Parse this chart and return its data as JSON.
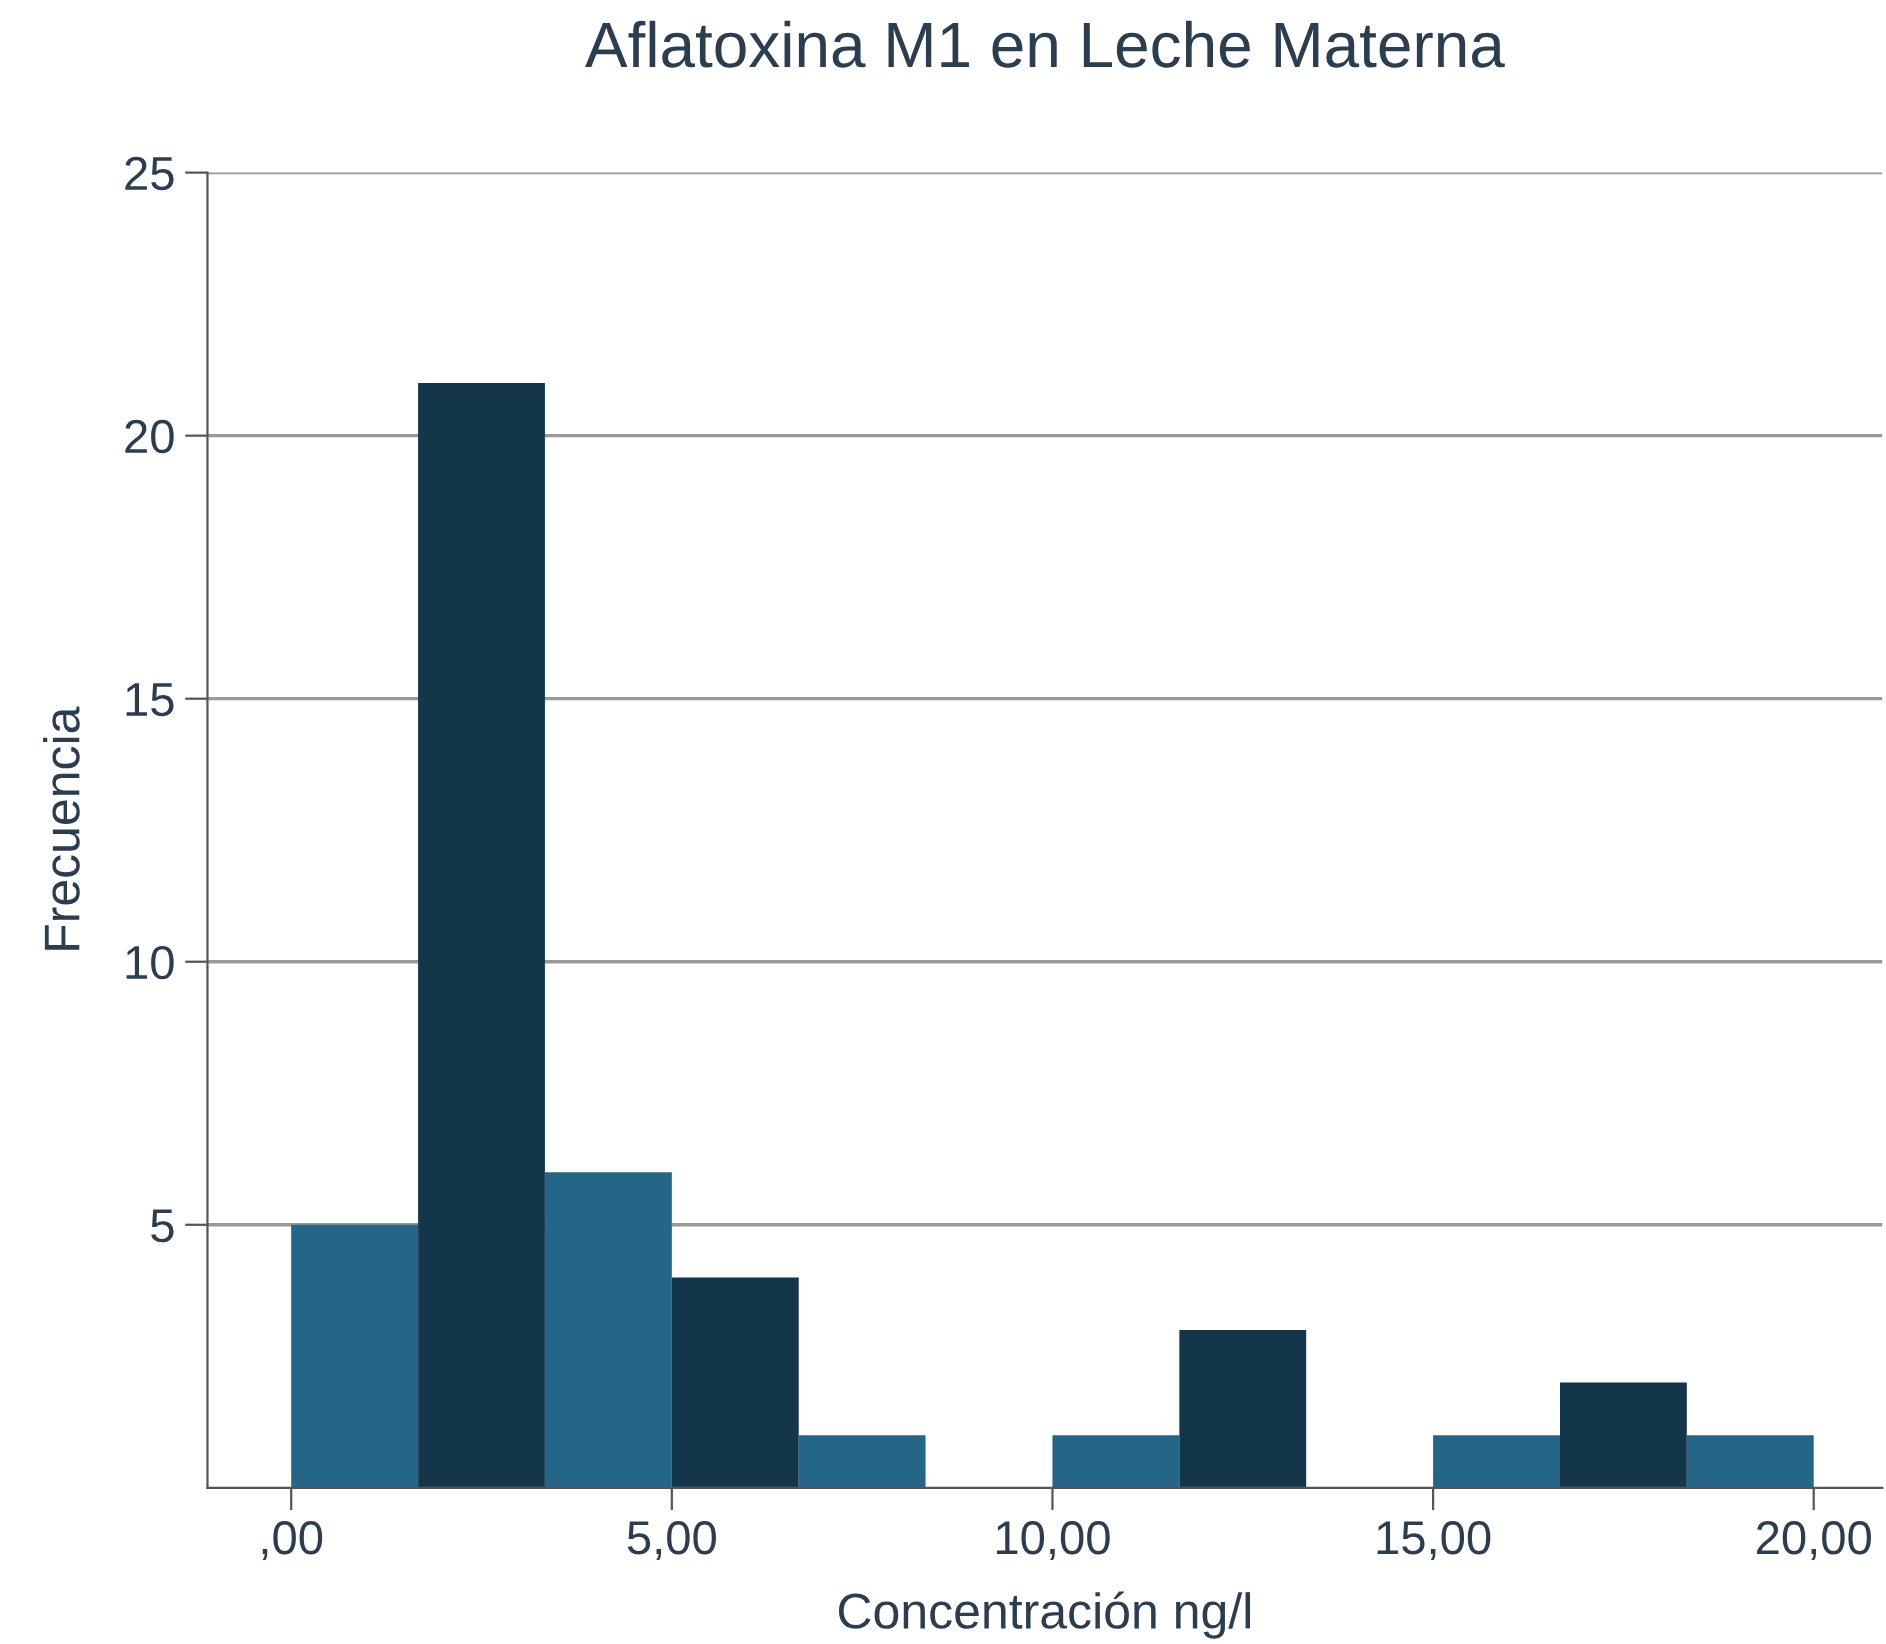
{
  "chart_data": {
    "type": "histogram",
    "title": "Aflatoxina M1 en Leche Materna",
    "xlabel": "Concentración ng/l",
    "ylabel": "Frecuencia",
    "bins": [
      0,
      1.667,
      3.333,
      5,
      6.667,
      8.333,
      10,
      11.667,
      13.333,
      15,
      16.667,
      18.333,
      20
    ],
    "values": [
      5,
      21,
      6,
      4,
      1,
      0,
      1,
      3,
      0,
      1,
      2,
      1
    ],
    "colors": [
      "#256588",
      "#13364b",
      "#256588",
      "#13364b",
      "#256588",
      "#13364b",
      "#256588",
      "#13364b",
      "#256588",
      "#256588",
      "#13364b",
      "#256588"
    ],
    "xlim": [
      -1.1,
      20.9
    ],
    "xticks": [
      {
        "value": 0,
        "label": ",00"
      },
      {
        "value": 5,
        "label": "5,00"
      },
      {
        "value": 10,
        "label": "10,00"
      },
      {
        "value": 15,
        "label": "15,00"
      },
      {
        "value": 20,
        "label": "20,00"
      }
    ],
    "ylim": [
      0,
      25
    ],
    "yticks": [
      5,
      10,
      15,
      20,
      25
    ],
    "grid": "y",
    "legend": false
  }
}
